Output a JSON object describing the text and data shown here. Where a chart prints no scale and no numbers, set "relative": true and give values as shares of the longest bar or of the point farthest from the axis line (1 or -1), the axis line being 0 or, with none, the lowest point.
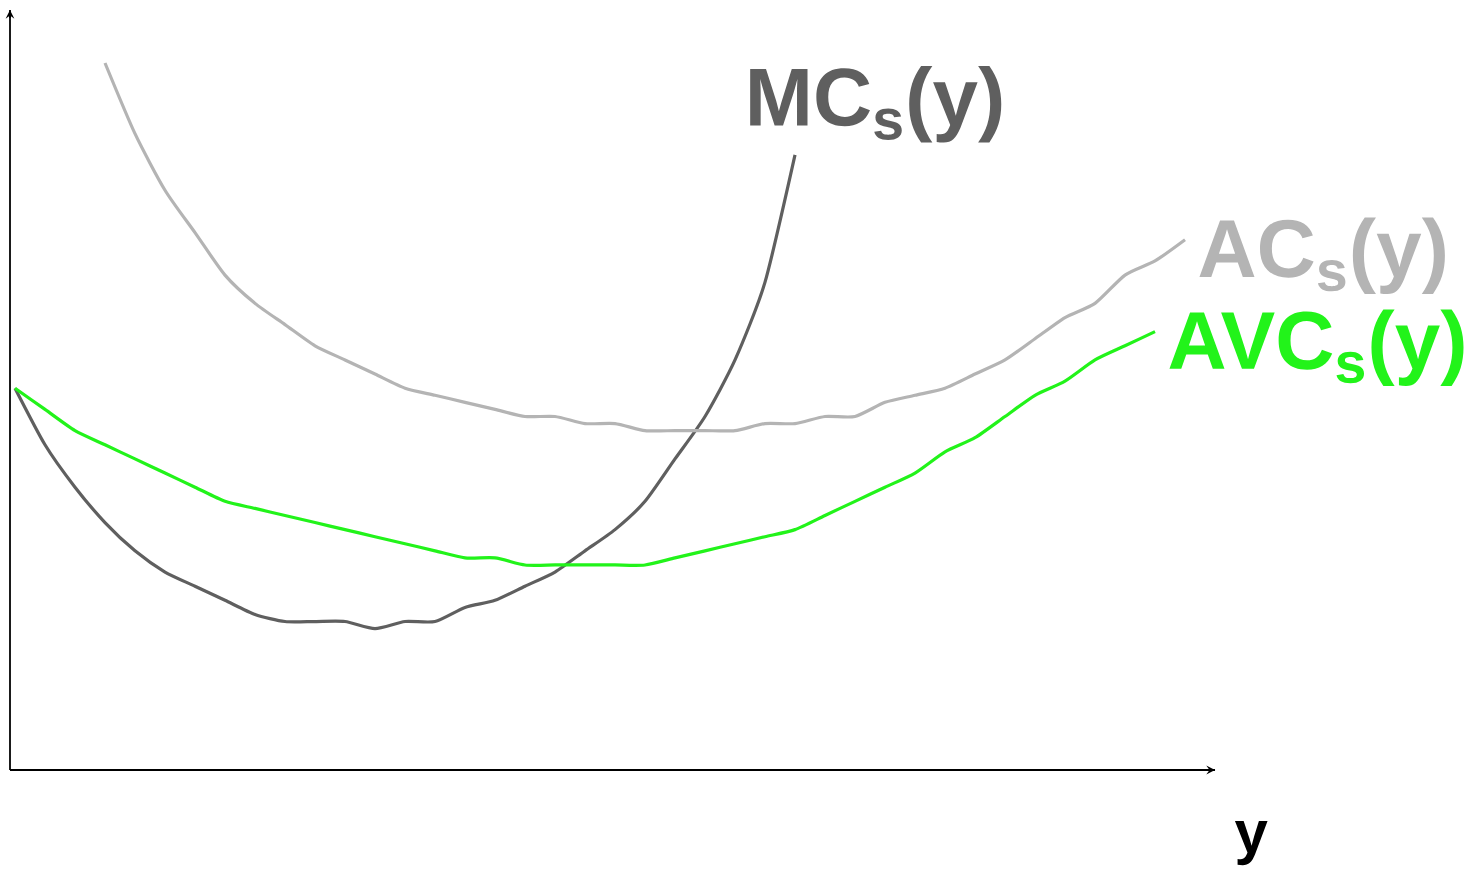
{
  "chart_data": {
    "type": "line",
    "relative": true,
    "xlabel": "y",
    "categories": [
      null,
      null,
      null,
      null,
      null,
      null,
      null,
      null,
      null,
      null,
      null,
      null,
      null,
      null,
      null,
      null,
      null,
      null,
      null,
      null,
      null,
      null,
      null,
      null,
      null,
      null,
      null,
      null,
      null,
      null,
      null,
      null,
      null,
      null,
      null,
      null,
      null,
      null,
      null,
      null
    ],
    "series": [
      {
        "name": "MC$_{s}$(y)",
        "color": "#5f5f5f",
        "values": [
          0.54,
          0.46,
          0.4,
          0.35,
          0.31,
          0.28,
          0.26,
          0.24,
          0.22,
          0.21,
          0.21,
          0.21,
          0.2,
          0.21,
          0.21,
          0.23,
          0.24,
          0.26,
          0.28,
          0.31,
          0.34,
          0.38,
          0.44,
          0.5,
          0.58,
          0.69,
          0.87,
          null,
          null,
          null,
          null,
          null,
          null,
          null,
          null,
          null,
          null,
          null,
          null,
          null
        ]
      },
      {
        "name": "AC$_{s}$(y)",
        "color": "#b4b4b4",
        "values": [
          null,
          null,
          null,
          1.0,
          0.9,
          0.82,
          0.76,
          0.7,
          0.66,
          0.63,
          0.6,
          0.58,
          0.56,
          0.54,
          0.53,
          0.52,
          0.51,
          0.5,
          0.5,
          0.49,
          0.49,
          0.48,
          0.48,
          0.48,
          0.48,
          0.49,
          0.49,
          0.5,
          0.5,
          0.52,
          0.53,
          0.54,
          0.56,
          0.58,
          0.61,
          0.64,
          0.66,
          0.7,
          0.72,
          0.75
        ]
      },
      {
        "name": "AVC$_{s}$(y)",
        "color": "#22f31a",
        "values": [
          0.54,
          0.51,
          0.48,
          0.46,
          0.44,
          0.42,
          0.4,
          0.38,
          0.37,
          0.36,
          0.35,
          0.34,
          0.33,
          0.32,
          0.31,
          0.3,
          0.3,
          0.29,
          0.29,
          0.29,
          0.29,
          0.29,
          0.3,
          0.31,
          0.32,
          0.33,
          0.34,
          0.36,
          0.38,
          0.4,
          0.42,
          0.45,
          0.47,
          0.5,
          0.53,
          0.55,
          0.58,
          0.6,
          0.62,
          null
        ]
      }
    ]
  }
}
